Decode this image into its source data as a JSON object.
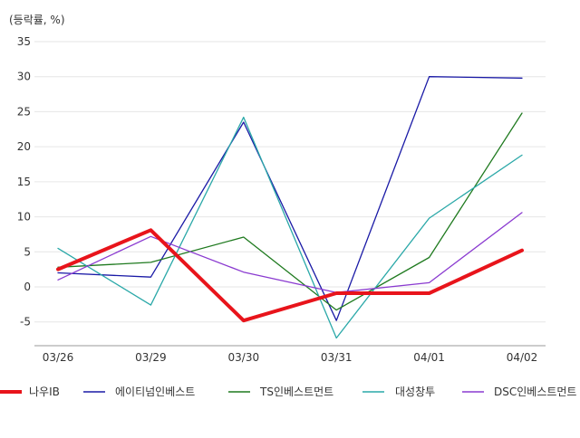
{
  "chart_data": {
    "type": "line",
    "unit_label": "(등락률, %)",
    "categories": [
      "03/26",
      "03/29",
      "03/30",
      "03/31",
      "04/01",
      "04/02"
    ],
    "y_ticks": [
      -5,
      0,
      5,
      10,
      15,
      20,
      25,
      30,
      35
    ],
    "ylim": [
      -8.5,
      35
    ],
    "grid": true,
    "legend_position": "bottom",
    "series": [
      {
        "name": "나우IB",
        "color": "#e8141b",
        "width": 4,
        "values": [
          2.5,
          8.1,
          -4.8,
          -0.9,
          -0.9,
          5.2
        ]
      },
      {
        "name": "에이티넘인베스트",
        "color": "#1a1aa6",
        "width": 1.3,
        "values": [
          2.0,
          1.4,
          23.5,
          -4.8,
          30.0,
          29.8
        ]
      },
      {
        "name": "TS인베스트먼트",
        "color": "#1f7a1f",
        "width": 1.3,
        "values": [
          2.8,
          3.5,
          7.1,
          -3.3,
          4.2,
          24.8
        ]
      },
      {
        "name": "대성창투",
        "color": "#2aa8a8",
        "width": 1.3,
        "values": [
          5.5,
          -2.6,
          24.2,
          -7.3,
          9.8,
          18.8
        ]
      },
      {
        "name": "DSC인베스트먼트",
        "color": "#8a3ad0",
        "width": 1.3,
        "values": [
          1.0,
          7.2,
          2.1,
          -0.8,
          0.6,
          10.6
        ]
      }
    ]
  }
}
